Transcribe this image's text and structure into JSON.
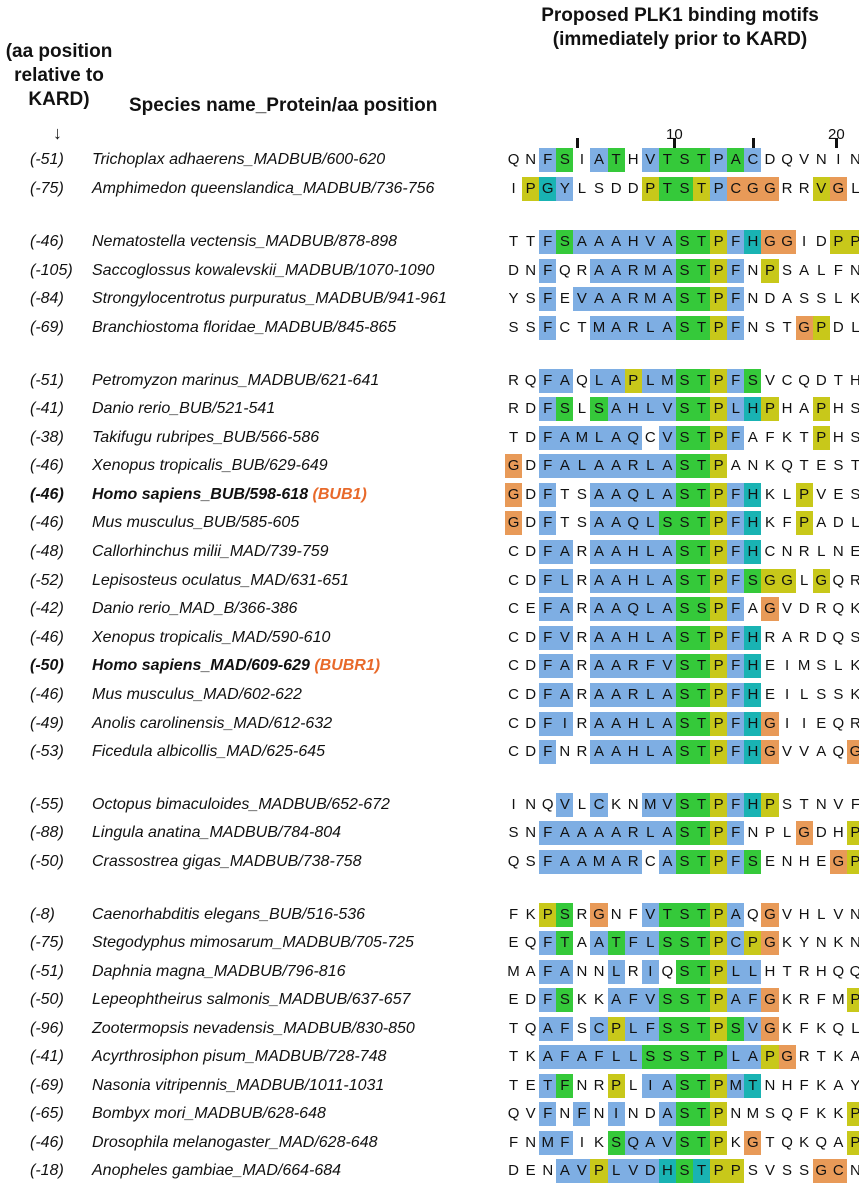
{
  "header": {
    "motif_title": "Proposed PLK1 binding motifs (immediately prior to KARD)",
    "aa_position_title": "(aa position relative to KARD)",
    "species_title": "Species name_Protein/aa position",
    "arrow": "↓"
  },
  "ruler": {
    "label_10": "10",
    "label_20": "20"
  },
  "colors": {
    "b": "#7eaee3",
    "g": "#35c93a",
    "y": "#c8c81a",
    "o": "#e89a58",
    "t": "#19b3b3",
    "tag": "#e8692a"
  },
  "rows": [
    {
      "pos": "(-51)",
      "name": "Trichoplax adhaerens_MADBUB/600-620",
      "tag": "",
      "bold": false,
      "seq": "QNFSIATHVTSTPACDQVNIN",
      "col": "nnbgnbgnbgggbgbnnnnnn"
    },
    {
      "pos": "(-75)",
      "name": "Amphimedon queenslandica_MADBUB/736-756",
      "tag": "",
      "bold": false,
      "seq": "IPGYLSDDPTSTPCGGRRVGL",
      "col": "nytbnnnnyggybooonnyon"
    },
    {
      "pos": "(-46)",
      "name": "Nematostella vectensis_MADBUB/878-898",
      "tag": "",
      "bold": false,
      "seq": "TTFSAAAHVASTPFHGGIDPP",
      "col": "nnbgbbbbbbggybtoonnyy"
    },
    {
      "pos": "(-105)",
      "name": "Saccoglossus kowalevskii_MADBUB/1070-1090",
      "tag": "",
      "bold": false,
      "seq": "DNFQRAARMASTPFNPSALFN",
      "col": "nnbnnbbbbbggybnynnnnn"
    },
    {
      "pos": "(-84)",
      "name": "Strongylocentrotus purpuratus_MADBUB/941-961",
      "tag": "",
      "bold": false,
      "seq": "YSFEVAARMASTPFNDASSLK",
      "col": "nnbnbbbbbbggybnnnnnnn"
    },
    {
      "pos": "(-69)",
      "name": "Branchiostoma floridae_MADBUB/845-865",
      "tag": "",
      "bold": false,
      "seq": "SSFCTMARLASTPFNSTGPDL",
      "col": "nnbnnbbbbbggybnnnoynn"
    },
    {
      "pos": "(-51)",
      "name": "Petromyzon marinus_MADBUB/621-641",
      "tag": "",
      "bold": false,
      "seq": "RQFAQLAPLMSTPFSVCQDTH",
      "col": "nnbbnbbybbggybgnnnnnn"
    },
    {
      "pos": "(-41)",
      "name": "Danio rerio_BUB/521-541",
      "tag": "",
      "bold": false,
      "seq": "RDFSLSAHLVSTPLHPHAPHS",
      "col": "nnbgngbbbbggybtynnynn"
    },
    {
      "pos": "(-38)",
      "name": "Takifugu rubripes_BUB/566-586",
      "tag": "",
      "bold": false,
      "seq": "TDFAMLAQCVSTPFAFKTPHS",
      "col": "nnbbbbbbnbggybnnnnynn"
    },
    {
      "pos": "(-46)",
      "name": "Xenopus tropicalis_BUB/629-649",
      "tag": "",
      "bold": false,
      "seq": "GDFALAARLASTPANKQTEST",
      "col": "onbbbbbbbbggynnnnnnnn"
    },
    {
      "pos": "(-46)",
      "name": "Homo sapiens_BUB/598-618",
      "tag": "(BUB1)",
      "bold": true,
      "seq": "GDFTSAAQLASTPFHKLPVES",
      "col": "onbnnbbbbbggybtnnynnn"
    },
    {
      "pos": "(-46)",
      "name": "Mus musculus_BUB/585-605",
      "tag": "",
      "bold": false,
      "seq": "GDFTSAAQLSSTPFHKFPADL",
      "col": "onbnnbbbbgggybtnnynnn"
    },
    {
      "pos": "(-48)",
      "name": "Callorhinchus milii_MAD/739-759",
      "tag": "",
      "bold": false,
      "seq": "CDFARAAHLASTPFHCNRLNE",
      "col": "nnbbnbbbbbggybtnnnnnn"
    },
    {
      "pos": "(-52)",
      "name": "Lepisosteus oculatus_MAD/631-651",
      "tag": "",
      "bold": false,
      "seq": "CDFLRAAHLASTPFSGGLGQR",
      "col": "nnbbnbbbbbggybgyynynn"
    },
    {
      "pos": "(-42)",
      "name": "Danio rerio_MAD_B/366-386",
      "tag": "",
      "bold": false,
      "seq": "CEFARAAQLASSPFAGVDRQK",
      "col": "nnbbnbbbbbggybnonnnnn"
    },
    {
      "pos": "(-46)",
      "name": "Xenopus tropicalis_MAD/590-610",
      "tag": "",
      "bold": false,
      "seq": "CDFVRAAHLASTPFHRARDQS",
      "col": "nnbbnbbbbbggybtnnnnnn"
    },
    {
      "pos": "(-50)",
      "name": "Homo sapiens_MAD/609-629",
      "tag": "(BUBR1)",
      "bold": true,
      "seq": "CDFARAARFVSTPFHEIMSLK",
      "col": "nnbbnbbbbbggybtnnnnnn"
    },
    {
      "pos": "(-46)",
      "name": "Mus musculus_MAD/602-622",
      "tag": "",
      "bold": false,
      "seq": "CDFARAARLASTPFHEILSSK",
      "col": "nnbbnbbbbbggybtnnnnnn"
    },
    {
      "pos": "(-49)",
      "name": "Anolis carolinensis_MAD/612-632",
      "tag": "",
      "bold": false,
      "seq": "CDFIRAAHLASTPFHGIIEQR",
      "col": "nnbbnbbbbbggybtonnnnn"
    },
    {
      "pos": "(-53)",
      "name": "Ficedula albicollis_MAD/625-645",
      "tag": "",
      "bold": false,
      "seq": "CDFNRAAHLASTPFHGVVAQG",
      "col": "nnbnnbbbbbggybtonnnno"
    },
    {
      "pos": "(-55)",
      "name": "Octopus bimaculoides_MADBUB/652-672",
      "tag": "",
      "bold": false,
      "seq": "INQVLCKNMVSTPFHPSTNVF",
      "col": "nnnbnbnnbbggybtynnnnn"
    },
    {
      "pos": "(-88)",
      "name": "Lingula anatina_MADBUB/784-804",
      "tag": "",
      "bold": false,
      "seq": "SNFAAAARLASTPFNPLGDHP",
      "col": "nnbbbbbbbbggybnnnonny"
    },
    {
      "pos": "(-50)",
      "name": "Crassostrea gigas_MADBUB/738-758",
      "tag": "",
      "bold": false,
      "seq": "QSFAAMARCASTPFSENHEGP",
      "col": "nnbbbbbbnbggybgnnnnoy"
    },
    {
      "pos": "(-8)",
      "name": "Caenorhabditis elegans_BUB/516-536",
      "tag": "",
      "bold": false,
      "seq": "FKPSRGNFVTSTPAQGVHLVN",
      "col": "nnygnonnbgggybnonnnnn"
    },
    {
      "pos": "(-75)",
      "name": "Stegodyphus mimosarum_MADBUB/705-725",
      "tag": "",
      "bold": false,
      "seq": "EQFTAATFLSSTPCPGKYNKN",
      "col": "nnbgnbgbbgggybyonnnnn"
    },
    {
      "pos": "(-51)",
      "name": "Daphnia magna_MADBUB/796-816",
      "tag": "",
      "bold": false,
      "seq": "MAFANNLRIQSTPLLHTRHQQ",
      "col": "nnbbnnbnbnggybbnnnnnn"
    },
    {
      "pos": "(-50)",
      "name": "Lepeophtheirus salmonis_MADBUB/637-657",
      "tag": "",
      "bold": false,
      "seq": "EDFSKKAFVSSTPAFGKRFMP",
      "col": "nnbgnnbbbgggybbonnnny"
    },
    {
      "pos": "(-96)",
      "name": "Zootermopsis nevadensis_MADBUB/830-850",
      "tag": "",
      "bold": false,
      "seq": "TQAFSCPLFSSTPSVGKFKQL",
      "col": "nnbbnbybbgggygbonnnnn"
    },
    {
      "pos": "(-41)",
      "name": "Acyrthrosiphon pisum_MADBUB/728-748",
      "tag": "",
      "bold": false,
      "seq": "TKAFAFLLSSSTPLAPGRTKA",
      "col": "nnbbbbbbgggggbbyonnnn"
    },
    {
      "pos": "(-69)",
      "name": "Nasonia vitripennis_MADBUB/1011-1031",
      "tag": "",
      "bold": false,
      "seq": "TETFNRPLIASTPMTNHFKAY",
      "col": "nnbgnnynbbggybtnnnnnn"
    },
    {
      "pos": "(-65)",
      "name": "Bombyx mori_MADBUB/628-648",
      "tag": "",
      "bold": false,
      "seq": "QVFNFNINDASTPNMSQFKKP",
      "col": "nnbnbnbnnbggynnnnnnny"
    },
    {
      "pos": "(-46)",
      "name": "Drosophila melanogaster_MAD/628-648",
      "tag": "",
      "bold": false,
      "seq": "FNMFIKSQAVSTPKGTQKQAP",
      "col": "nnbbnngbbbggynonnnnny"
    },
    {
      "pos": "(-18)",
      "name": "Anopheles gambiae_MAD/664-684",
      "tag": "",
      "bold": false,
      "seq": "DENAVPLVDHSTPPSVSSGCN",
      "col": "nnnbbybbbtgtyynnnnoon"
    }
  ]
}
